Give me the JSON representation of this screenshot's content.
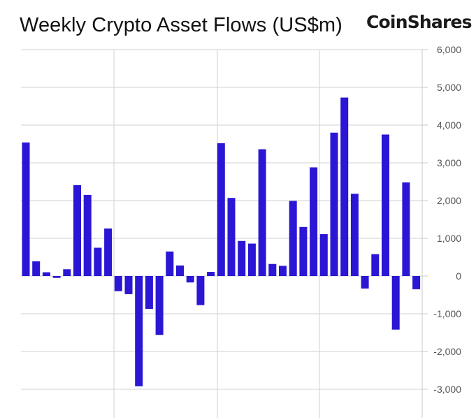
{
  "header": {
    "title": "Weekly Crypto Asset Flows (US$m)",
    "brand": "CoinShares"
  },
  "chart_data": {
    "type": "bar",
    "title": "Weekly Crypto Asset Flows (US$m)",
    "xlabel": "",
    "ylabel": "",
    "ylim": [
      -3000,
      6000
    ],
    "y_ticks": [
      6000,
      5000,
      4000,
      3000,
      2000,
      1000,
      0,
      -1000,
      -2000,
      -3000
    ],
    "y_tick_labels": [
      "6,000",
      "5,000",
      "4,000",
      "3,000",
      "2,000",
      "1,000",
      "0",
      "-1,000",
      "-2,000",
      "-3,000"
    ],
    "y_axis_side": "right",
    "grid": true,
    "bar_color": "#2a16d4",
    "values": [
      3540,
      390,
      100,
      -50,
      180,
      2410,
      2150,
      750,
      1260,
      -400,
      -480,
      -2920,
      -870,
      -1560,
      650,
      280,
      -170,
      -770,
      110,
      3520,
      2070,
      930,
      860,
      3360,
      320,
      270,
      1990,
      1300,
      2880,
      1110,
      3800,
      4730,
      2180,
      -330,
      580,
      3750,
      -1420,
      2480,
      -350
    ]
  }
}
